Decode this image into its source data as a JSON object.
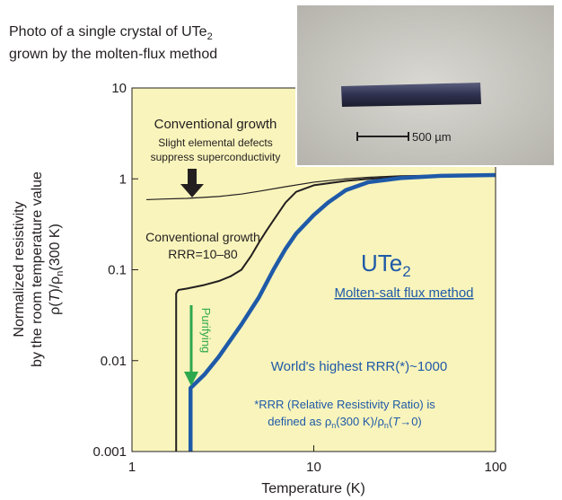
{
  "chart_data": {
    "type": "line",
    "xlabel": "Temperature (K)",
    "ylabel": [
      "Normalized resistivity",
      "by the room temperature value",
      [
        "ρ(",
        "T",
        ")/ρ",
        "n",
        "(300 K)"
      ]
    ],
    "xlim": [
      1,
      100
    ],
    "ylim": [
      0.001,
      10
    ],
    "xticks": [
      1,
      10,
      100
    ],
    "yticks": [
      0.001,
      0.01,
      0.1,
      1,
      10
    ],
    "log_x": true,
    "log_y": true,
    "plot_background": "#f9f4bb",
    "series": [
      {
        "color": "#231f20",
        "width": 1.2,
        "x": [
          1.2,
          1.5,
          2,
          3,
          4,
          5,
          7,
          10,
          15,
          20,
          30,
          50,
          100
        ],
        "values": [
          0.59,
          0.6,
          0.61,
          0.64,
          0.68,
          0.73,
          0.82,
          0.92,
          1.0,
          1.04,
          1.08,
          1.1,
          1.1
        ]
      },
      {
        "color": "#231f20",
        "width": 2,
        "x": [
          1.75,
          1.75,
          1.8,
          2,
          2.5,
          3,
          3.5,
          4,
          4.5,
          5,
          5.5,
          6,
          7,
          8,
          10,
          15,
          20,
          30,
          50,
          100
        ],
        "values": [
          0.001,
          0.055,
          0.06,
          0.062,
          0.068,
          0.075,
          0.085,
          0.1,
          0.14,
          0.2,
          0.27,
          0.35,
          0.55,
          0.72,
          0.85,
          0.95,
          1.0,
          1.05,
          1.08,
          1.1
        ]
      },
      {
        "color": "#1f5aa8",
        "width": 4.5,
        "x": [
          2.1,
          2.1,
          2.5,
          3,
          4,
          5,
          6,
          7,
          8,
          10,
          12,
          15,
          20,
          30,
          50,
          100
        ],
        "values": [
          0.001,
          0.005,
          0.007,
          0.011,
          0.025,
          0.05,
          0.1,
          0.17,
          0.25,
          0.4,
          0.55,
          0.75,
          0.92,
          1.02,
          1.08,
          1.1
        ]
      }
    ],
    "photo_caption": [
      [
        "Photo of a single crystal of UTe",
        "2"
      ],
      "grown by the molten-flux method"
    ],
    "scale_bar": "500 µm",
    "annotations": {
      "conventional_1": [
        "Conventional growth",
        "Slight elemental defects",
        "suppress superconductivity"
      ],
      "conventional_2": [
        "Conventional growth",
        "RRR=10–80"
      ],
      "compound": [
        "UTe",
        "2"
      ],
      "method": "Molten-salt flux method",
      "purifying": "Purifying",
      "highest": "World's highest RRR(*)~1000",
      "footnote": [
        "*RRR (Relative Resistivity Ratio) is",
        [
          "defined as ρ",
          "n",
          "(300 K)/ρ",
          "n",
          "(",
          "T",
          "→0)"
        ]
      ]
    }
  }
}
